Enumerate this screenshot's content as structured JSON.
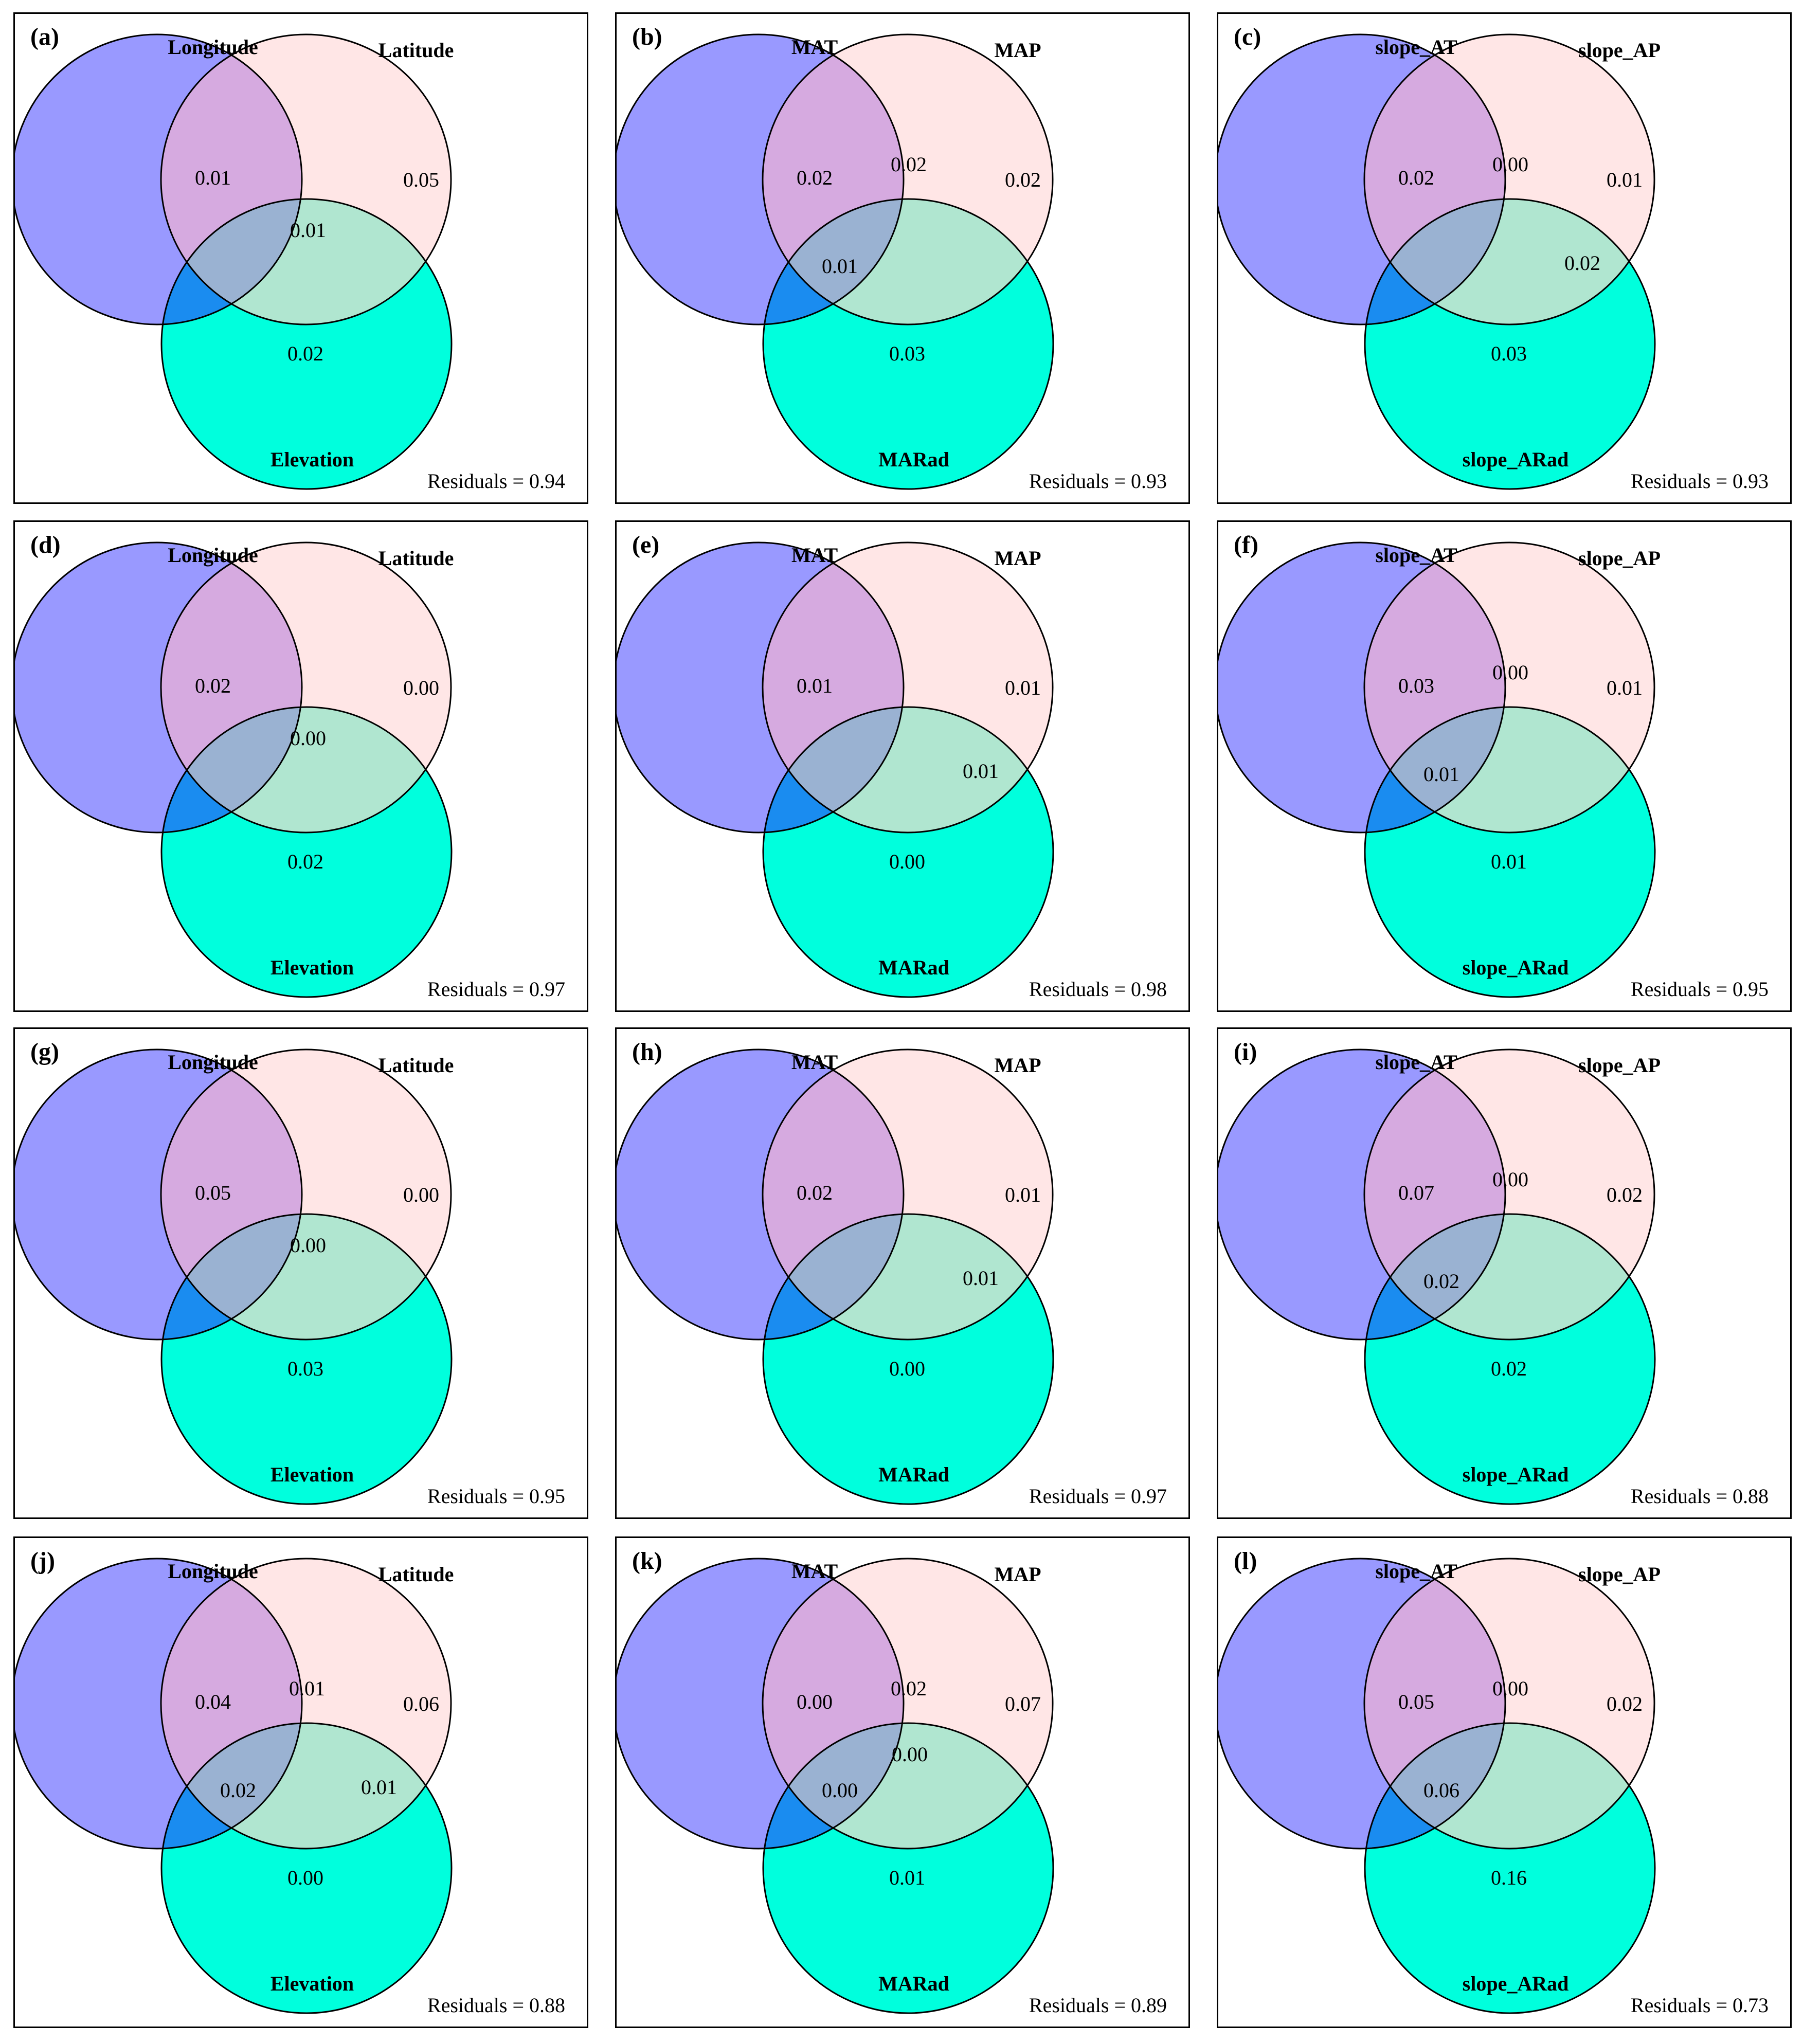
{
  "colors": {
    "set1": "#9999ff",
    "set2": "#ffe6e6",
    "set3": "#00ffdd",
    "i12": "#d6aae0",
    "i13": "#1a8cf0",
    "i23": "#b0e6d0",
    "i123": "#9ab2d2",
    "outline": "#000000"
  },
  "panels": [
    {
      "label": "(a)",
      "sets": [
        "Longitude",
        "Latitude",
        "Elevation"
      ],
      "values": {
        "a": "0.01",
        "b": "0.05",
        "c": "0.02",
        "ab": "",
        "ac": "",
        "bc": "",
        "abc": "0.01"
      },
      "residuals": "Residuals = 0.94"
    },
    {
      "label": "(b)",
      "sets": [
        "MAT",
        "MAP",
        "MARad"
      ],
      "values": {
        "a": "0.02",
        "b": "0.02",
        "c": "0.03",
        "ab": "0.02",
        "ac": "0.01",
        "bc": "",
        "abc": ""
      },
      "residuals": "Residuals = 0.93"
    },
    {
      "label": "(c)",
      "sets": [
        "slope_AT",
        "slope_AP",
        "slope_ARad"
      ],
      "values": {
        "a": "0.02",
        "b": "0.01",
        "c": "0.03",
        "ab": "0.00",
        "ac": "",
        "bc": "0.02",
        "abc": ""
      },
      "residuals": "Residuals = 0.93"
    },
    {
      "label": "(d)",
      "sets": [
        "Longitude",
        "Latitude",
        "Elevation"
      ],
      "values": {
        "a": "0.02",
        "b": "0.00",
        "c": "0.02",
        "ab": "",
        "ac": "",
        "bc": "",
        "abc": "0.00"
      },
      "residuals": "Residuals = 0.97"
    },
    {
      "label": "(e)",
      "sets": [
        "MAT",
        "MAP",
        "MARad"
      ],
      "values": {
        "a": "0.01",
        "b": "0.01",
        "c": "0.00",
        "ab": "",
        "ac": "",
        "bc": "0.01",
        "abc": ""
      },
      "residuals": "Residuals = 0.98"
    },
    {
      "label": "(f)",
      "sets": [
        "slope_AT",
        "slope_AP",
        "slope_ARad"
      ],
      "values": {
        "a": "0.03",
        "b": "0.01",
        "c": "0.01",
        "ab": "0.00",
        "ac": "0.01",
        "bc": "",
        "abc": ""
      },
      "residuals": "Residuals = 0.95"
    },
    {
      "label": "(g)",
      "sets": [
        "Longitude",
        "Latitude",
        "Elevation"
      ],
      "values": {
        "a": "0.05",
        "b": "0.00",
        "c": "0.03",
        "ab": "",
        "ac": "",
        "bc": "",
        "abc": "0.00"
      },
      "residuals": "Residuals = 0.95"
    },
    {
      "label": "(h)",
      "sets": [
        "MAT",
        "MAP",
        "MARad"
      ],
      "values": {
        "a": "0.02",
        "b": "0.01",
        "c": "0.00",
        "ab": "",
        "ac": "",
        "bc": "0.01",
        "abc": ""
      },
      "residuals": "Residuals = 0.97"
    },
    {
      "label": "(i)",
      "sets": [
        "slope_AT",
        "slope_AP",
        "slope_ARad"
      ],
      "values": {
        "a": "0.07",
        "b": "0.02",
        "c": "0.02",
        "ab": "0.00",
        "ac": "0.02",
        "bc": "",
        "abc": ""
      },
      "residuals": "Residuals = 0.88"
    },
    {
      "label": "(j)",
      "sets": [
        "Longitude",
        "Latitude",
        "Elevation"
      ],
      "values": {
        "a": "0.04",
        "b": "0.06",
        "c": "0.00",
        "ab": "0.01",
        "ac": "0.02",
        "bc": "0.01",
        "abc": ""
      },
      "residuals": "Residuals = 0.88"
    },
    {
      "label": "(k)",
      "sets": [
        "MAT",
        "MAP",
        "MARad"
      ],
      "values": {
        "a": "0.00",
        "b": "0.07",
        "c": "0.01",
        "ab": "0.02",
        "ac": "0.00",
        "bc": "",
        "abc": "0.00"
      },
      "residuals": "Residuals = 0.89"
    },
    {
      "label": "(l)",
      "sets": [
        "slope_AT",
        "slope_AP",
        "slope_ARad"
      ],
      "values": {
        "a": "0.05",
        "b": "0.02",
        "c": "0.16",
        "ab": "0.00",
        "ac": "0.06",
        "bc": "",
        "abc": ""
      },
      "residuals": "Residuals = 0.73"
    }
  ]
}
